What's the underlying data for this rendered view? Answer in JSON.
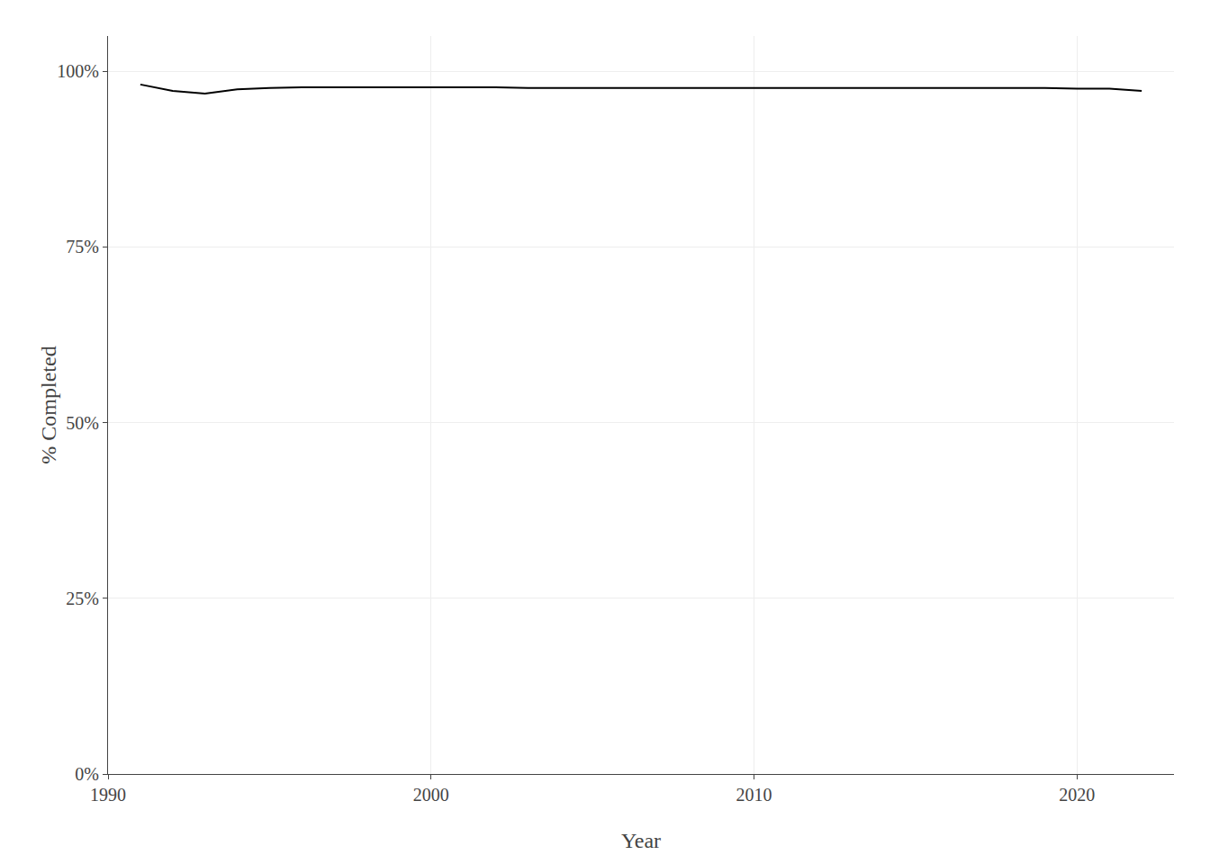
{
  "chart_data": {
    "type": "line",
    "xlabel": "Year",
    "ylabel": "% Completed",
    "x": [
      1991,
      1992,
      1993,
      1994,
      1995,
      1996,
      1997,
      1998,
      1999,
      2000,
      2001,
      2002,
      2003,
      2004,
      2005,
      2006,
      2007,
      2008,
      2009,
      2010,
      2011,
      2012,
      2013,
      2014,
      2015,
      2016,
      2017,
      2018,
      2019,
      2020,
      2021,
      2022
    ],
    "values": [
      0.981,
      0.972,
      0.968,
      0.974,
      0.976,
      0.977,
      0.977,
      0.977,
      0.977,
      0.977,
      0.977,
      0.977,
      0.976,
      0.976,
      0.976,
      0.976,
      0.976,
      0.976,
      0.976,
      0.976,
      0.976,
      0.976,
      0.976,
      0.976,
      0.976,
      0.976,
      0.976,
      0.976,
      0.976,
      0.975,
      0.975,
      0.972
    ],
    "color": "#000000",
    "xlim": [
      1990,
      2023
    ],
    "xticks": [
      1990,
      2000,
      2010,
      2020
    ],
    "ylim": [
      0,
      1.05
    ],
    "yticks": [
      {
        "value": 0,
        "label": "0%"
      },
      {
        "value": 0.25,
        "label": "25%"
      },
      {
        "value": 0.5,
        "label": "50%"
      },
      {
        "value": 0.75,
        "label": "75%"
      },
      {
        "value": 1.0,
        "label": "100%"
      }
    ],
    "grid": true
  }
}
